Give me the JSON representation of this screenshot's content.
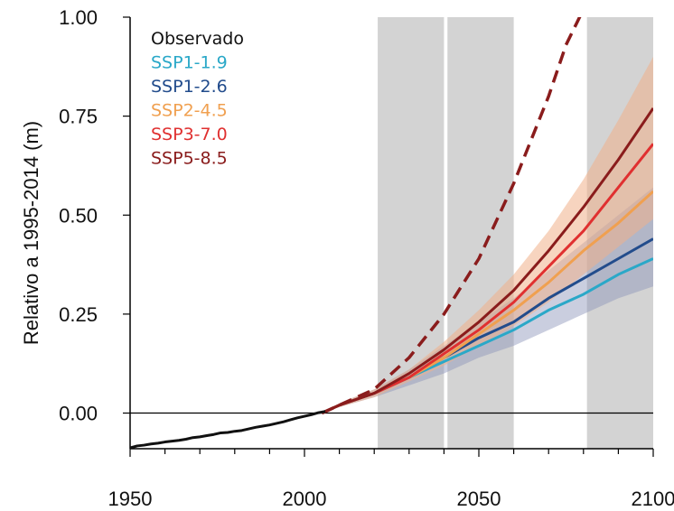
{
  "chart_data": {
    "type": "line",
    "title": "",
    "xlabel": "",
    "ylabel": "Relativo a 1995-2014 (m)",
    "xlim": [
      1950,
      2100
    ],
    "ylim": [
      -0.09,
      1.0
    ],
    "xticks": [
      1950,
      2000,
      2050,
      2100
    ],
    "xtick_labels": [
      "1950",
      "2000",
      "2050",
      "2100"
    ],
    "yticks": [
      0.0,
      0.25,
      0.5,
      0.75,
      1.0
    ],
    "ytick_labels": [
      "0.00",
      "0.25",
      "0.50",
      "0.75",
      "1.00"
    ],
    "grid": false,
    "legend_position": "top-left",
    "shaded_periods": [
      [
        2021,
        2040
      ],
      [
        2041,
        2060
      ],
      [
        2081,
        2100
      ]
    ],
    "zero_line": 0.0,
    "observed": {
      "name": "Observado",
      "color": "#111111",
      "x": [
        1950,
        1952,
        1954,
        1956,
        1958,
        1960,
        1962,
        1964,
        1966,
        1968,
        1970,
        1972,
        1974,
        1976,
        1978,
        1980,
        1982,
        1984,
        1986,
        1988,
        1990,
        1992,
        1994,
        1996,
        1998,
        2000,
        2002,
        2004,
        2006
      ],
      "y": [
        -0.088,
        -0.083,
        -0.081,
        -0.078,
        -0.076,
        -0.073,
        -0.071,
        -0.069,
        -0.066,
        -0.062,
        -0.06,
        -0.057,
        -0.054,
        -0.05,
        -0.049,
        -0.046,
        -0.044,
        -0.04,
        -0.036,
        -0.033,
        -0.03,
        -0.026,
        -0.022,
        -0.017,
        -0.012,
        -0.008,
        -0.004,
        0.001,
        0.004
      ]
    },
    "x": [
      2005,
      2010,
      2020,
      2030,
      2040,
      2050,
      2060,
      2070,
      2080,
      2090,
      2100
    ],
    "series": [
      {
        "name": "SSP1-1.9",
        "color": "#2aa8c8",
        "dash": false,
        "values": [
          0.0,
          0.02,
          0.05,
          0.09,
          0.13,
          0.17,
          0.21,
          0.26,
          0.3,
          0.35,
          0.39
        ]
      },
      {
        "name": "SSP1-2.6",
        "color": "#224c8c",
        "dash": false,
        "values": [
          0.0,
          0.02,
          0.05,
          0.09,
          0.14,
          0.19,
          0.23,
          0.29,
          0.34,
          0.39,
          0.44
        ]
      },
      {
        "name": "SSP2-4.5",
        "color": "#f0a050",
        "dash": false,
        "values": [
          0.0,
          0.02,
          0.05,
          0.09,
          0.14,
          0.2,
          0.26,
          0.33,
          0.41,
          0.48,
          0.56
        ]
      },
      {
        "name": "SSP3-7.0",
        "color": "#e03030",
        "dash": false,
        "values": [
          0.0,
          0.02,
          0.05,
          0.09,
          0.15,
          0.21,
          0.28,
          0.37,
          0.46,
          0.57,
          0.68
        ]
      },
      {
        "name": "SSP5-8.5",
        "color": "#8a1c1c",
        "dash": false,
        "values": [
          0.0,
          0.02,
          0.05,
          0.1,
          0.16,
          0.23,
          0.31,
          0.41,
          0.52,
          0.64,
          0.77
        ]
      },
      {
        "name": "SSP5-8.5",
        "color": "#8a1c1c",
        "dash": true,
        "x": [
          2005,
          2010,
          2020,
          2030,
          2040,
          2050,
          2060,
          2070,
          2075,
          2080
        ],
        "values": [
          0.0,
          0.02,
          0.06,
          0.14,
          0.25,
          0.39,
          0.58,
          0.8,
          0.93,
          1.02
        ]
      }
    ],
    "bands": [
      {
        "color": "#8a93b8",
        "opacity": 0.45,
        "lower": [
          0.0,
          0.015,
          0.04,
          0.07,
          0.1,
          0.14,
          0.17,
          0.21,
          0.25,
          0.29,
          0.32
        ],
        "upper": [
          0.0,
          0.025,
          0.06,
          0.11,
          0.17,
          0.23,
          0.29,
          0.36,
          0.43,
          0.5,
          0.57
        ]
      },
      {
        "color": "#f0b08a",
        "opacity": 0.55,
        "lower": [
          0.0,
          0.015,
          0.04,
          0.08,
          0.12,
          0.17,
          0.22,
          0.28,
          0.35,
          0.42,
          0.49
        ],
        "upper": [
          0.0,
          0.025,
          0.06,
          0.11,
          0.18,
          0.26,
          0.35,
          0.46,
          0.59,
          0.74,
          0.9
        ]
      }
    ],
    "legend": [
      {
        "label": "Observado",
        "color": "#111111"
      },
      {
        "label": "SSP1-1.9",
        "color": "#2aa8c8"
      },
      {
        "label": "SSP1-2.6",
        "color": "#224c8c"
      },
      {
        "label": "SSP2-4.5",
        "color": "#f0a050"
      },
      {
        "label": "SSP3-7.0",
        "color": "#e03030"
      },
      {
        "label": "SSP5-8.5",
        "color": "#8a1c1c"
      }
    ]
  }
}
